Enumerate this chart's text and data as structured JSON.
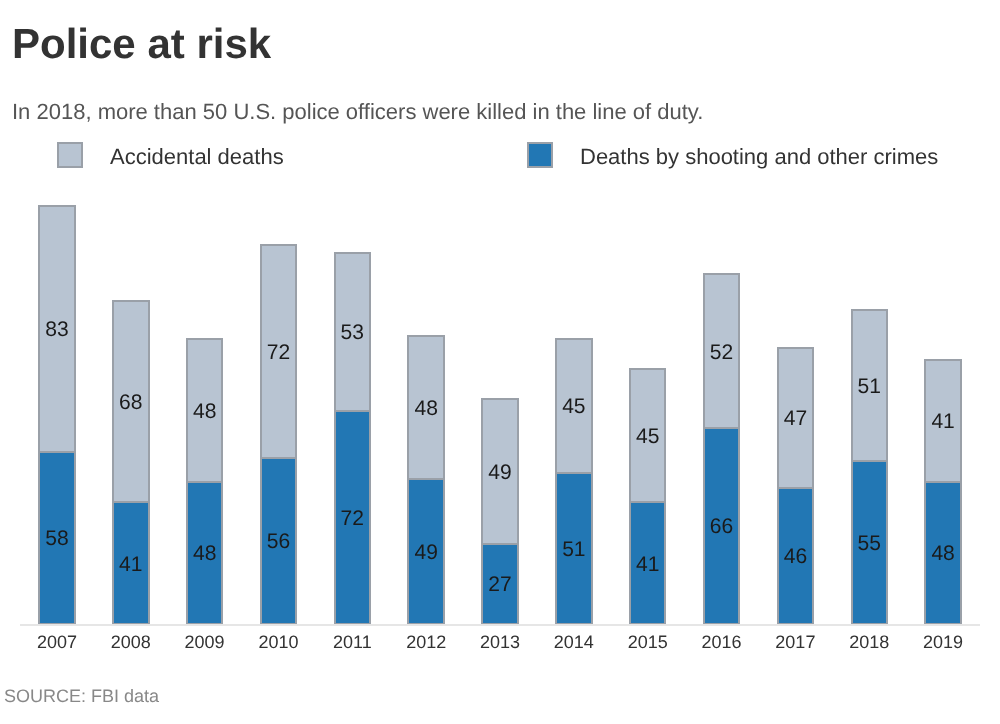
{
  "chart_data": {
    "type": "bar",
    "title": "Police at risk",
    "subtitle": "In 2018, more than 50 U.S. police officers were killed in the line of duty.",
    "categories": [
      "2007",
      "2008",
      "2009",
      "2010",
      "2011",
      "2012",
      "2013",
      "2014",
      "2015",
      "2016",
      "2017",
      "2018",
      "2019"
    ],
    "series": [
      {
        "name": "Deaths by shooting and other crimes",
        "color": "#2277b4",
        "values": [
          58,
          41,
          48,
          56,
          72,
          49,
          27,
          51,
          41,
          66,
          46,
          55,
          48
        ]
      },
      {
        "name": "Accidental deaths",
        "color": "#b8c4d2",
        "values": [
          83,
          68,
          48,
          72,
          53,
          48,
          49,
          45,
          45,
          52,
          47,
          51,
          41
        ]
      }
    ],
    "stacked": true,
    "data_labels": true,
    "legend": "top",
    "grid": false,
    "annotations": [
      "SOURCE: FBI data"
    ]
  }
}
